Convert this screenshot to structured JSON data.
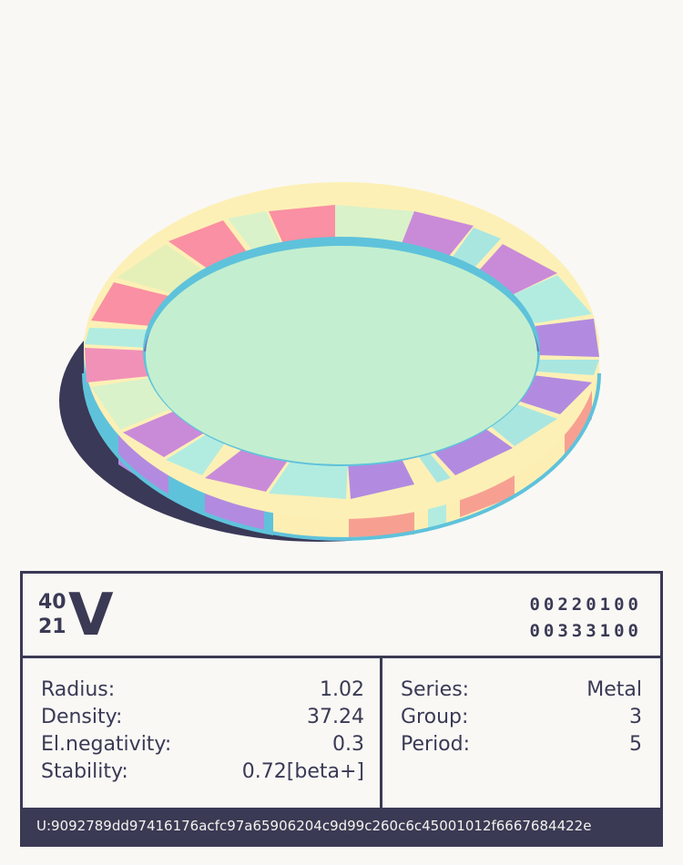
{
  "element": {
    "mass_number": "40",
    "atomic_number": "21",
    "symbol": "V",
    "code_line_1": "00220100",
    "code_line_2": "00333100"
  },
  "properties": {
    "radius_label": "Radius:",
    "radius": "1.02",
    "density_label": "Density:",
    "density": "37.24",
    "electronegativity_label": "El.negativity:",
    "electronegativity": "0.3",
    "stability_label": "Stability:",
    "stability": "0.72[beta+]",
    "series_label": "Series:",
    "series": "Metal",
    "group_label": "Group:",
    "group": "3",
    "period_label": "Period:",
    "period": "5"
  },
  "footer": {
    "hash": "U:9092789dd97416176acfc97a65906204c9d99c260c6c45001012f6667684422e"
  },
  "colors": {
    "background": "#f9f8f5",
    "ink": "#3b3a54",
    "ring_center": "#c3efd0",
    "ring_rim": "#5fc2db",
    "ring_segments": [
      "#fa90a3",
      "#d9f2c9",
      "#c98bd8",
      "#b2ece0",
      "#fdf0b6",
      "#b28be0",
      "#a9e6e0",
      "#f3a09b"
    ]
  }
}
